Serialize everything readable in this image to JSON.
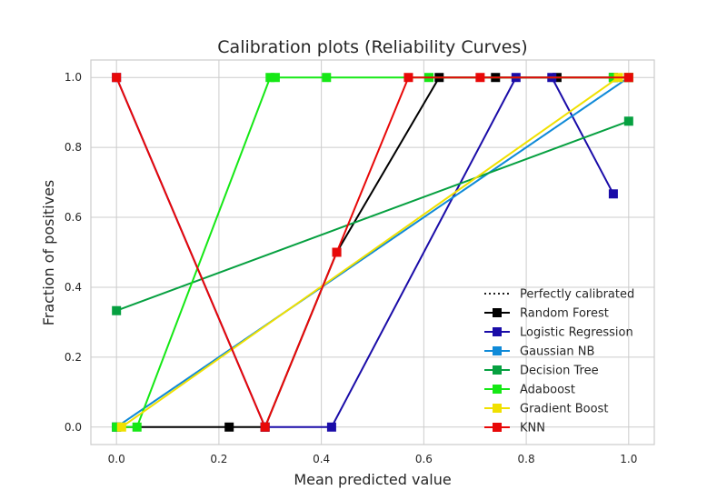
{
  "chart_data": {
    "type": "line",
    "title": "Calibration plots (Reliability Curves)",
    "xlabel": "Mean predicted value",
    "ylabel": "Fraction of positives",
    "xlim": [
      -0.05,
      1.05
    ],
    "ylim": [
      -0.05,
      1.05
    ],
    "xticks": [
      "0.0",
      "0.2",
      "0.4",
      "0.6",
      "0.8",
      "1.0"
    ],
    "yticks": [
      "0.0",
      "0.2",
      "0.4",
      "0.6",
      "0.8",
      "1.0"
    ],
    "grid": true,
    "legend_position": "lower-right",
    "reference": {
      "name": "Perfectly calibrated",
      "x": [
        0,
        1
      ],
      "y": [
        0,
        1
      ],
      "color": "#000000"
    },
    "series": [
      {
        "name": "Random Forest",
        "color": "#000000",
        "x": [
          0.0,
          0.22,
          0.29,
          0.43,
          0.63,
          0.74,
          0.86,
          0.97,
          1.0
        ],
        "y": [
          0.0,
          0.0,
          0.0,
          0.5,
          1.0,
          1.0,
          1.0,
          1.0,
          1.0
        ]
      },
      {
        "name": "Logistic Regression",
        "color": "#1a0ca8",
        "x": [
          0.0,
          0.29,
          0.42,
          0.78,
          0.85,
          0.97
        ],
        "y": [
          1.0,
          0.0,
          0.0,
          1.0,
          1.0,
          0.667
        ]
      },
      {
        "name": "Gaussian NB",
        "color": "#0f8ad8",
        "x": [
          0.0,
          1.0
        ],
        "y": [
          0.0,
          1.0
        ]
      },
      {
        "name": "Decision Tree",
        "color": "#06a040",
        "x": [
          0.0,
          1.0
        ],
        "y": [
          0.333,
          0.875
        ]
      },
      {
        "name": "Adaboost",
        "color": "#15e815",
        "x": [
          0.0,
          0.04,
          0.3,
          0.31,
          0.41,
          0.61,
          0.97,
          1.0
        ],
        "y": [
          0.0,
          0.0,
          1.0,
          1.0,
          1.0,
          1.0,
          1.0,
          1.0
        ]
      },
      {
        "name": "Gradient Boost",
        "color": "#f0e000",
        "x": [
          0.01,
          0.98,
          1.0
        ],
        "y": [
          0.0,
          1.0,
          1.0
        ]
      },
      {
        "name": "KNN",
        "color": "#e80808",
        "x": [
          0.0,
          0.29,
          0.43,
          0.57,
          0.71,
          1.0
        ],
        "y": [
          1.0,
          0.0,
          0.5,
          1.0,
          1.0,
          1.0
        ]
      }
    ]
  }
}
